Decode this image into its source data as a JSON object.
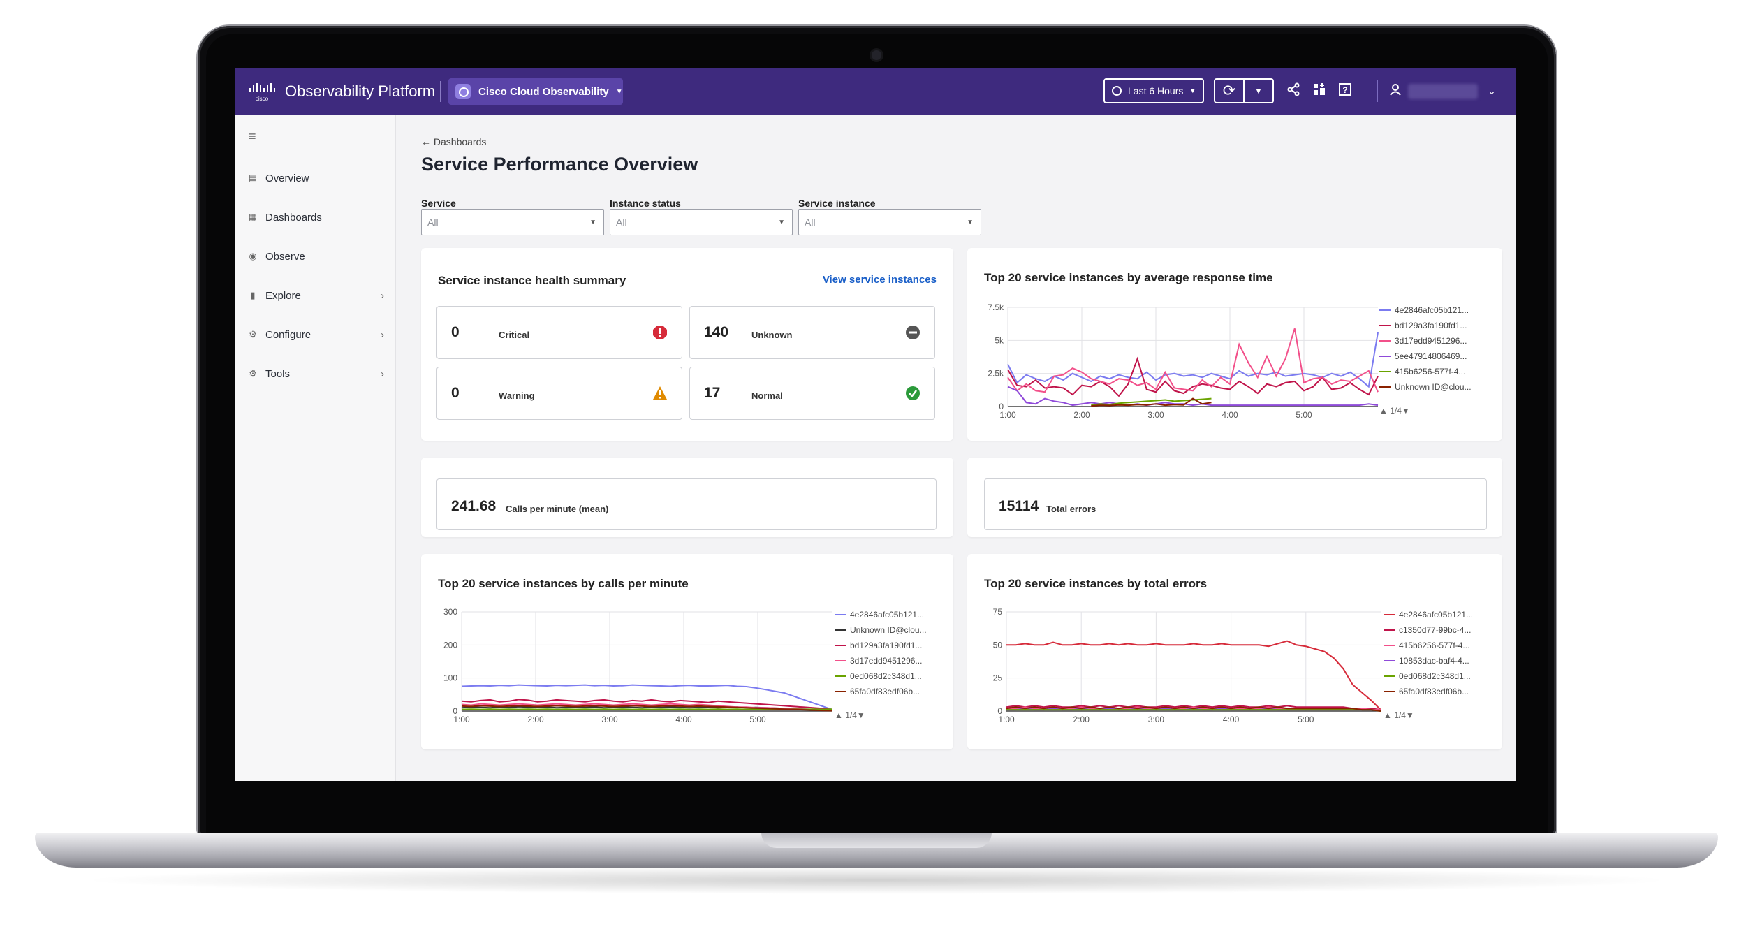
{
  "header": {
    "brand": "Observability Platform",
    "product": "Cisco Cloud Observability",
    "time_range": "Last 6 Hours"
  },
  "sidebar": {
    "items": [
      {
        "label": "Overview",
        "icon": "document-icon"
      },
      {
        "label": "Dashboards",
        "icon": "dashboard-icon"
      },
      {
        "label": "Observe",
        "icon": "eye-icon"
      },
      {
        "label": "Explore",
        "icon": "bar-chart-icon"
      },
      {
        "label": "Configure",
        "icon": "gear-icon"
      },
      {
        "label": "Tools",
        "icon": "gear-icon"
      }
    ]
  },
  "page": {
    "breadcrumb": "Dashboards",
    "title": "Service Performance Overview"
  },
  "filters": [
    {
      "label": "Service",
      "value": "All"
    },
    {
      "label": "Instance status",
      "value": "All"
    },
    {
      "label": "Service instance",
      "value": "All"
    }
  ],
  "health": {
    "title": "Service instance health summary",
    "link": "View service instances",
    "tiles": [
      {
        "value": "0",
        "label": "Critical",
        "color": "#d62b3a"
      },
      {
        "value": "140",
        "label": "Unknown",
        "color": "#555555"
      },
      {
        "value": "0",
        "label": "Warning",
        "color": "#e08a00"
      },
      {
        "value": "17",
        "label": "Normal",
        "color": "#2b9a3a"
      }
    ]
  },
  "stats": {
    "calls": {
      "value": "241.68",
      "label": "Calls per minute (mean)"
    },
    "errors": {
      "value": "15114",
      "label": "Total errors"
    }
  },
  "colors": {
    "header_bg": "#3e2a7e",
    "link": "#1a5fc8"
  },
  "chart_data": [
    {
      "type": "line",
      "title": "Top 20 service instances by average response time",
      "x_ticks": [
        "1:00",
        "2:00",
        "3:00",
        "4:00",
        "5:00"
      ],
      "y_ticks": [
        "0",
        "2.5k",
        "5k",
        "7.5k"
      ],
      "ylim": [
        0,
        7500
      ],
      "legend_page": "1/4",
      "series": [
        {
          "name": "4e2846afc05b121...",
          "color": "#7b7bf0",
          "values": [
            3200,
            1800,
            2400,
            2100,
            1900,
            2300,
            2000,
            2500,
            2200,
            1900,
            2300,
            2100,
            2400,
            2200,
            2100,
            2600,
            2000,
            2400,
            2500,
            2300,
            2400,
            2200,
            2500,
            2300,
            2100,
            2700,
            2300,
            2500,
            2400,
            2600,
            2300,
            2400,
            2500,
            2400,
            2200,
            2500,
            2300,
            2600,
            2100,
            1500,
            5600
          ]
        },
        {
          "name": "bd129a3fa190fd1...",
          "color": "#c0144a",
          "values": [
            2800,
            1600,
            1500,
            2000,
            1400,
            1500,
            1400,
            900,
            1600,
            1500,
            1900,
            1500,
            800,
            1700,
            3600,
            1300,
            1100,
            1900,
            1200,
            1000,
            1500,
            1700,
            1600,
            1400,
            1300,
            1900,
            1500,
            1000,
            1700,
            1500,
            1800,
            1900,
            1200,
            1500,
            2200,
            1300,
            1400,
            1800,
            1300,
            900,
            2300
          ]
        },
        {
          "name": "3d17edd9451296...",
          "color": "#f2508a",
          "values": [
            2200,
            1200,
            1700,
            1200,
            1100,
            2300,
            2400,
            2900,
            2600,
            2100,
            1900,
            1700,
            2100,
            2000,
            1600,
            1800,
            1300,
            2600,
            1400,
            1300,
            1200,
            2000,
            1500,
            2200,
            1700,
            4700,
            3300,
            2200,
            3800,
            2300,
            3600,
            5900,
            1800,
            2100,
            2200,
            1700,
            2000,
            1900,
            2300,
            2700,
            1100
          ]
        },
        {
          "name": "5ee47914806469...",
          "color": "#8f4ad9",
          "values": [
            1500,
            1200,
            300,
            200,
            600,
            400,
            300,
            100,
            200,
            300,
            200,
            300,
            200,
            100,
            200,
            100,
            200,
            300,
            200,
            200,
            100,
            200,
            100,
            100,
            100,
            100,
            100,
            100,
            100,
            100,
            100,
            100,
            100,
            100,
            100,
            100,
            100,
            100,
            100,
            200,
            100
          ]
        },
        {
          "name": "415b6256-577f-4...",
          "color": "#6aa300",
          "values": [
            null,
            null,
            null,
            null,
            null,
            null,
            null,
            null,
            null,
            100,
            200,
            150,
            250,
            300,
            350,
            400,
            450,
            500,
            400,
            450,
            500,
            550,
            600,
            null,
            null,
            null,
            null,
            null,
            null,
            null,
            null,
            null,
            null,
            null,
            null,
            null,
            null,
            null,
            null,
            null,
            null
          ]
        },
        {
          "name": "Unknown ID@clou...",
          "color": "#8a2200",
          "values": [
            null,
            null,
            null,
            null,
            null,
            null,
            null,
            null,
            null,
            50,
            100,
            80,
            120,
            100,
            150,
            120,
            200,
            100,
            150,
            120,
            600,
            200,
            300,
            null,
            null,
            null,
            null,
            null,
            null,
            null,
            null,
            null,
            null,
            null,
            null,
            null,
            null,
            null,
            null,
            null,
            null
          ]
        }
      ]
    },
    {
      "type": "line",
      "title": "Top 20 service instances by calls per minute",
      "x_ticks": [
        "1:00",
        "2:00",
        "3:00",
        "4:00",
        "5:00"
      ],
      "y_ticks": [
        "0",
        "100",
        "200",
        "300"
      ],
      "ylim": [
        0,
        300
      ],
      "legend_page": "1/4",
      "series": [
        {
          "name": "4e2846afc05b121...",
          "color": "#7b7bf0",
          "values": [
            75,
            76,
            77,
            76,
            78,
            77,
            79,
            78,
            77,
            76,
            78,
            77,
            78,
            79,
            77,
            78,
            76,
            77,
            79,
            78,
            77,
            76,
            75,
            77,
            78,
            76,
            76,
            77,
            78,
            75,
            74,
            70,
            65,
            60,
            55,
            45,
            35,
            25,
            15,
            5
          ]
        },
        {
          "name": "Unknown ID@clou...",
          "color": "#333333",
          "values": [
            10,
            12,
            11,
            10,
            12,
            11,
            13,
            12,
            11,
            12,
            10,
            11,
            12,
            11,
            12,
            10,
            11,
            12,
            11,
            10,
            12,
            11,
            12,
            11,
            10,
            11,
            12,
            10,
            11,
            12,
            10,
            11,
            10,
            9,
            8,
            7,
            6,
            5,
            4,
            3
          ]
        },
        {
          "name": "bd129a3fa190fd1...",
          "color": "#c0144a",
          "values": [
            30,
            28,
            32,
            34,
            28,
            30,
            35,
            33,
            28,
            30,
            34,
            32,
            30,
            28,
            32,
            34,
            30,
            28,
            32,
            30,
            34,
            30,
            28,
            32,
            30,
            28,
            26,
            30,
            28,
            26,
            24,
            22,
            20,
            18,
            16,
            14,
            12,
            10,
            8,
            5
          ]
        },
        {
          "name": "3d17edd9451296...",
          "color": "#f2508a",
          "values": [
            20,
            18,
            22,
            20,
            18,
            20,
            22,
            20,
            18,
            20,
            22,
            20,
            18,
            20,
            22,
            20,
            18,
            20,
            22,
            20,
            18,
            20,
            22,
            20,
            18,
            20,
            18,
            16,
            14,
            12,
            12,
            10,
            10,
            9,
            8,
            7,
            6,
            5,
            4,
            3
          ]
        },
        {
          "name": "0ed068d2c348d1...",
          "color": "#6aa300",
          "values": [
            5,
            6,
            5,
            6,
            5,
            6,
            5,
            6,
            5,
            6,
            5,
            6,
            5,
            6,
            5,
            6,
            5,
            6,
            5,
            6,
            5,
            6,
            5,
            6,
            5,
            6,
            5,
            6,
            5,
            6,
            5,
            6,
            5,
            6,
            5,
            6,
            5,
            6,
            5,
            6
          ]
        },
        {
          "name": "65fa0df83edf06b...",
          "color": "#8a2200",
          "values": [
            15,
            14,
            16,
            15,
            14,
            15,
            16,
            15,
            14,
            15,
            16,
            15,
            14,
            15,
            16,
            15,
            14,
            15,
            16,
            15,
            14,
            15,
            16,
            15,
            14,
            15,
            14,
            13,
            12,
            11,
            10,
            9,
            8,
            7,
            6,
            5,
            4,
            3,
            2,
            1
          ]
        }
      ]
    },
    {
      "type": "line",
      "title": "Top 20 service instances by total errors",
      "x_ticks": [
        "1:00",
        "2:00",
        "3:00",
        "4:00",
        "5:00"
      ],
      "y_ticks": [
        "0",
        "25",
        "50",
        "75"
      ],
      "ylim": [
        0,
        75
      ],
      "legend_page": "1/4",
      "series": [
        {
          "name": "4e2846afc05b121...",
          "color": "#d62b3a",
          "values": [
            50,
            50,
            51,
            50,
            50,
            52,
            50,
            50,
            51,
            50,
            50,
            51,
            50,
            51,
            50,
            50,
            51,
            50,
            50,
            50,
            51,
            50,
            50,
            51,
            50,
            50,
            50,
            50,
            49,
            51,
            53,
            50,
            49,
            47,
            45,
            40,
            32,
            20,
            14,
            8,
            1
          ]
        },
        {
          "name": "c1350d77-99bc-4...",
          "color": "#c0144a",
          "values": [
            3,
            4,
            3,
            4,
            3,
            4,
            3,
            3,
            4,
            3,
            4,
            3,
            4,
            3,
            4,
            3,
            3,
            4,
            3,
            4,
            3,
            4,
            3,
            4,
            3,
            4,
            3,
            3,
            4,
            3,
            4,
            3,
            3,
            3,
            3,
            3,
            3,
            2,
            2,
            2,
            1
          ]
        },
        {
          "name": "415b6256-577f-4...",
          "color": "#f2508a",
          "values": [
            2,
            2,
            3,
            2,
            2,
            3,
            2,
            2,
            3,
            2,
            2,
            3,
            2,
            2,
            3,
            2,
            2,
            3,
            2,
            2,
            3,
            2,
            2,
            3,
            2,
            2,
            2,
            2,
            3,
            2,
            2,
            2,
            2,
            2,
            2,
            2,
            2,
            2,
            2,
            1,
            1
          ]
        },
        {
          "name": "10853dac-baf4-4...",
          "color": "#8f4ad9",
          "values": [
            1,
            1,
            2,
            1,
            1,
            2,
            1,
            1,
            2,
            1,
            1,
            2,
            1,
            1,
            2,
            1,
            1,
            2,
            1,
            1,
            2,
            1,
            1,
            2,
            1,
            1,
            1,
            1,
            2,
            1,
            1,
            1,
            1,
            1,
            1,
            1,
            1,
            1,
            1,
            1,
            0
          ]
        },
        {
          "name": "0ed068d2c348d1...",
          "color": "#6aa300",
          "values": [
            1,
            1,
            1,
            1,
            1,
            1,
            1,
            1,
            1,
            1,
            1,
            1,
            1,
            1,
            1,
            1,
            1,
            1,
            1,
            1,
            1,
            1,
            1,
            1,
            1,
            1,
            1,
            1,
            1,
            1,
            1,
            1,
            1,
            1,
            1,
            1,
            1,
            1,
            1,
            1,
            0
          ]
        },
        {
          "name": "65fa0df83edf06b...",
          "color": "#8a2200",
          "values": [
            2,
            3,
            2,
            3,
            2,
            3,
            2,
            3,
            2,
            3,
            2,
            3,
            2,
            3,
            2,
            3,
            2,
            3,
            2,
            3,
            2,
            3,
            2,
            3,
            2,
            3,
            2,
            3,
            2,
            3,
            2,
            2,
            2,
            2,
            2,
            2,
            2,
            2,
            1,
            1,
            0
          ]
        }
      ]
    }
  ]
}
